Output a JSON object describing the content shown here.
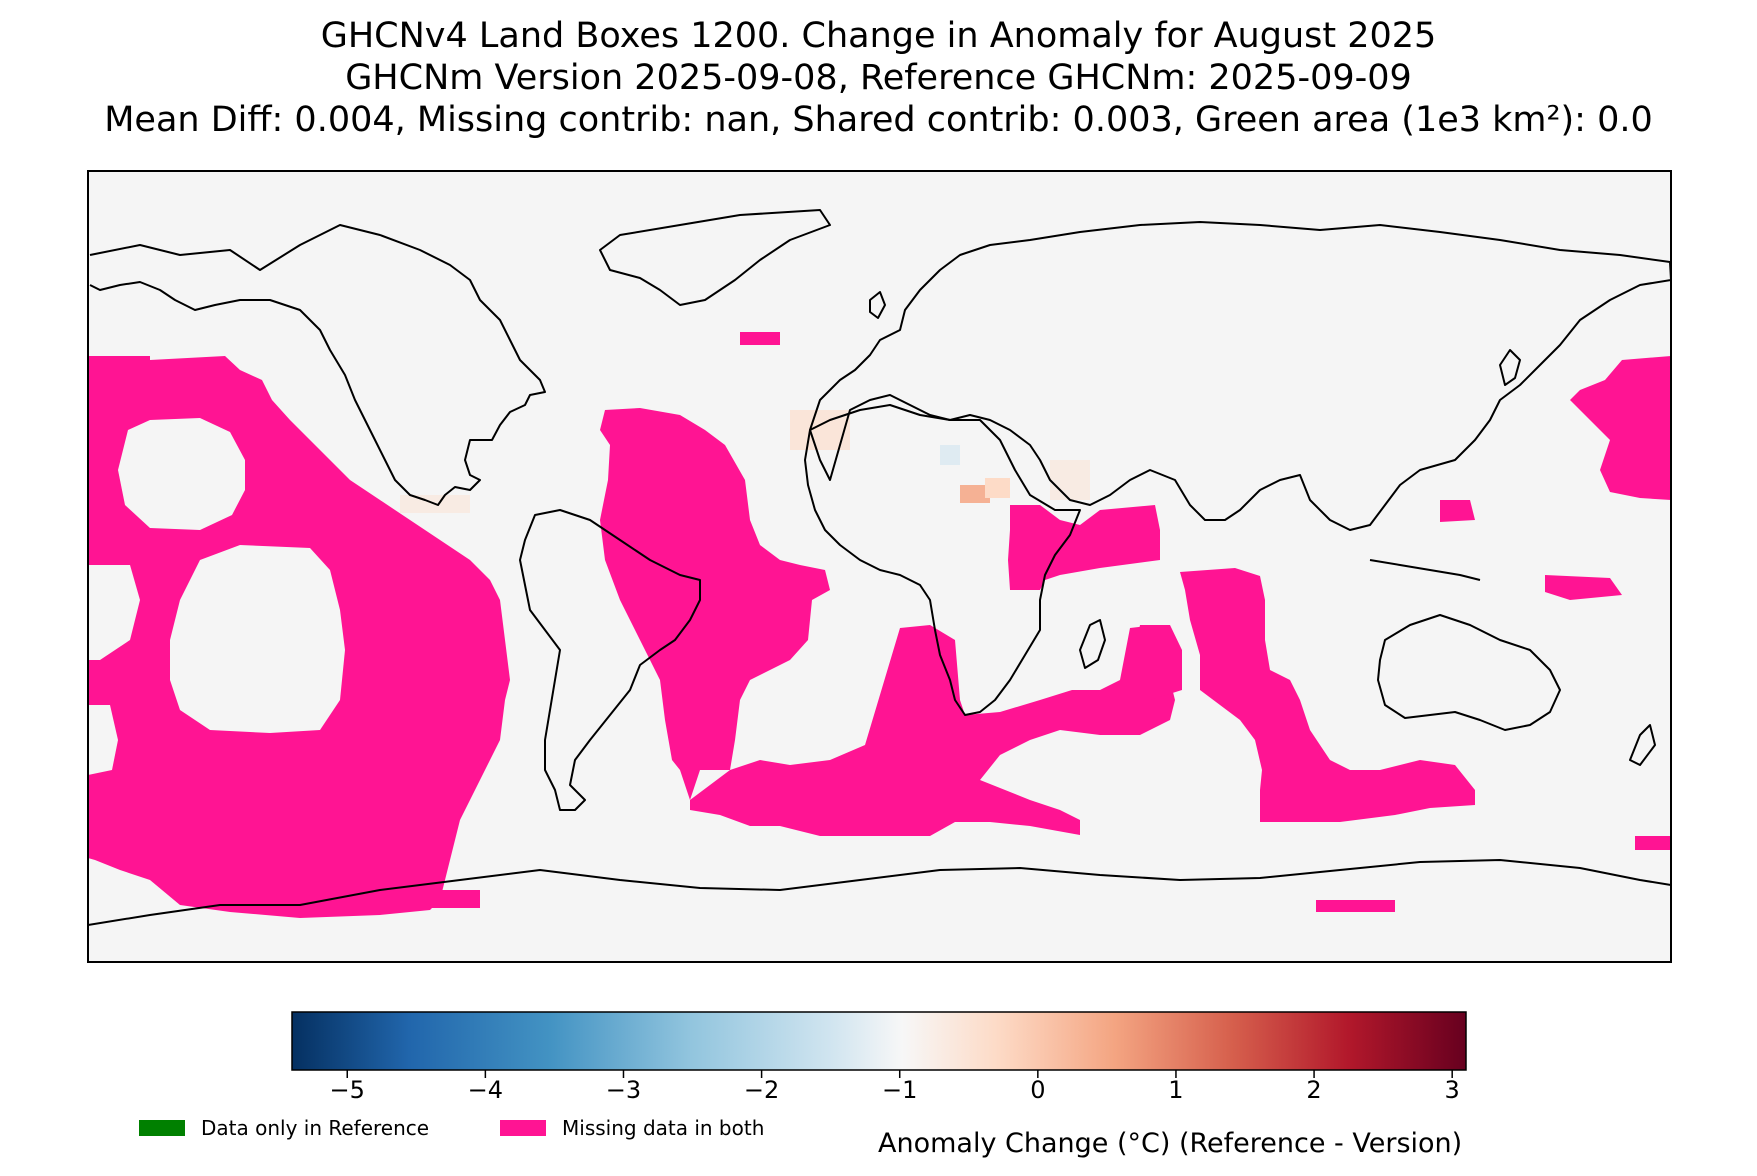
{
  "title": {
    "line1": "GHCNv4 Land Boxes 1200. Change in Anomaly for August 2025",
    "line2": "GHCNm Version 2025-09-08, Reference GHCNm: 2025-09-09",
    "line3": "Mean Diff: 0.004, Missing contrib: nan, Shared contrib: 0.003, Green area (1e3 km²): 0.0"
  },
  "colorbar": {
    "label": "Anomaly Change (°C) (Reference - Version)",
    "min": -5.4,
    "max": 3.1,
    "ticks": [
      {
        "value": -5,
        "label": "−5"
      },
      {
        "value": -4,
        "label": "−4"
      },
      {
        "value": -3,
        "label": "−3"
      },
      {
        "value": -2,
        "label": "−2"
      },
      {
        "value": -1,
        "label": "−1"
      },
      {
        "value": 0,
        "label": "0"
      },
      {
        "value": 1,
        "label": "1"
      },
      {
        "value": 2,
        "label": "2"
      },
      {
        "value": 3,
        "label": "3"
      }
    ],
    "colormap": "RdBu_r"
  },
  "legend": [
    {
      "label": "Data only in Reference",
      "color": "#008000"
    },
    {
      "label": "Missing data in both",
      "color": "#ff1493"
    }
  ],
  "map": {
    "projection": "equirectangular",
    "background_color": "#f5f5f5",
    "missing_color": "#ff1493",
    "coastline_color": "#000000"
  }
}
